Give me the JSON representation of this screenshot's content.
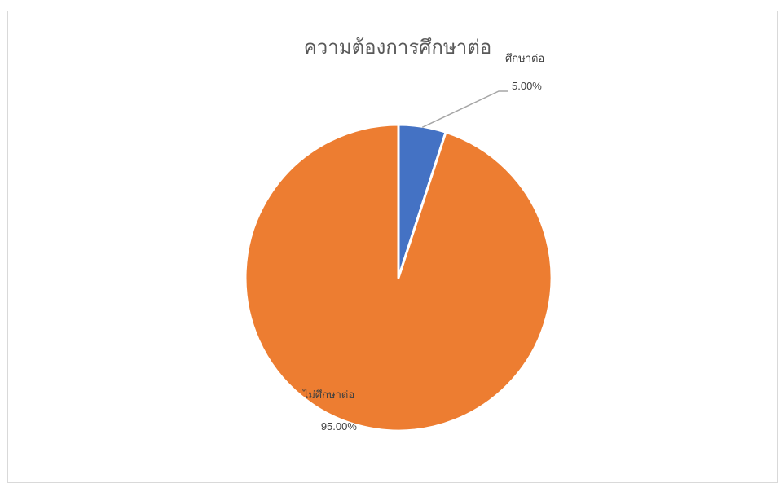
{
  "chart_data": {
    "type": "pie",
    "title": "ความต้องการศึกษาต่อ",
    "categories": [
      "ศึกษาต่อ",
      "ไม่ศึกษาต่อ"
    ],
    "values": [
      5.0,
      95.0
    ],
    "data_labels": [
      "5.00%",
      "95.00%"
    ],
    "colors": [
      "#4472c4",
      "#ed7d31"
    ],
    "legend": "none",
    "start_angle": "12 o'clock",
    "direction": "clockwise"
  }
}
